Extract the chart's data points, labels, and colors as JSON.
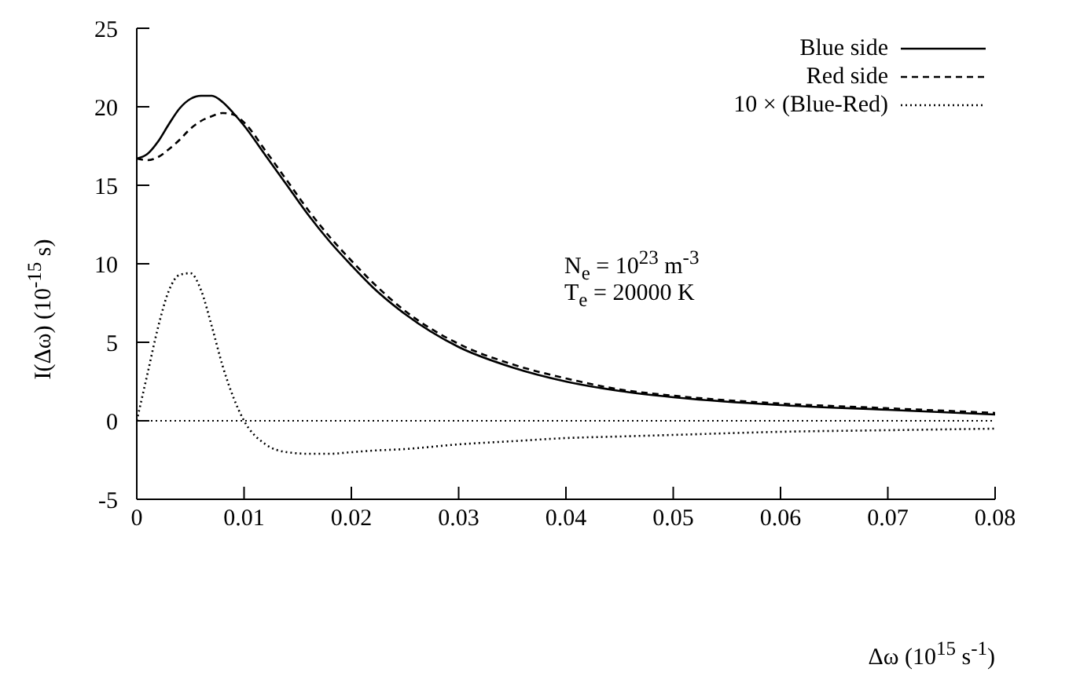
{
  "chart_data": {
    "type": "line",
    "xlabel": "Δω  (10$^{15}$ s$^{-1}$)",
    "ylabel": "I(Δω)  (10$^{-15}$ s)",
    "x": [
      0,
      0.001,
      0.002,
      0.003,
      0.004,
      0.005,
      0.006,
      0.007,
      0.008,
      0.009,
      0.01,
      0.012,
      0.014,
      0.016,
      0.018,
      0.02,
      0.022,
      0.025,
      0.03,
      0.035,
      0.04,
      0.045,
      0.05,
      0.06,
      0.07,
      0.08
    ],
    "series": [
      {
        "name": "Blue side",
        "color": "#000000",
        "line_style": "solid",
        "values": [
          16.7,
          17.0,
          17.8,
          18.9,
          19.9,
          20.5,
          20.7,
          20.7,
          20.3,
          19.6,
          18.8,
          16.9,
          15.0,
          13.1,
          11.4,
          9.9,
          8.5,
          6.8,
          4.7,
          3.4,
          2.5,
          1.9,
          1.5,
          1.0,
          0.7,
          0.4
        ]
      },
      {
        "name": "Red side",
        "color": "#000000",
        "line_style": "dashed",
        "values": [
          16.7,
          16.6,
          16.8,
          17.3,
          17.9,
          18.6,
          19.1,
          19.4,
          19.6,
          19.5,
          19.0,
          17.2,
          15.3,
          13.4,
          11.7,
          10.2,
          8.8,
          7.0,
          4.9,
          3.6,
          2.7,
          2.0,
          1.6,
          1.1,
          0.8,
          0.5
        ]
      },
      {
        "name": "10 × (Blue-Red)",
        "color": "#000000",
        "line_style": "dotted",
        "values": [
          0,
          3.0,
          6.0,
          8.3,
          9.3,
          9.4,
          8.3,
          6.0,
          3.5,
          1.5,
          0,
          -1.5,
          -2.0,
          -2.1,
          -2.1,
          -2.0,
          -1.9,
          -1.8,
          -1.5,
          -1.3,
          -1.1,
          -1.0,
          -0.9,
          -0.7,
          -0.6,
          -0.5
        ]
      }
    ],
    "xlim": [
      0,
      0.08
    ],
    "xticks": [
      0,
      0.01,
      0.02,
      0.03,
      0.04,
      0.05,
      0.06,
      0.07,
      0.08
    ],
    "ylim": [
      -5,
      25
    ],
    "yticks": [
      -5,
      0,
      5,
      10,
      15,
      20,
      25
    ],
    "ref_lines": [
      {
        "axis": "y",
        "value": 0,
        "color": "#000000",
        "line_style": "dotted"
      }
    ],
    "annotations": [
      "N$_{e}$ = 10$^{23}$ m$^{-3}$",
      "T$_{e}$ = 20000 K"
    ],
    "legend": "top right",
    "grid": false,
    "marker": "none"
  }
}
